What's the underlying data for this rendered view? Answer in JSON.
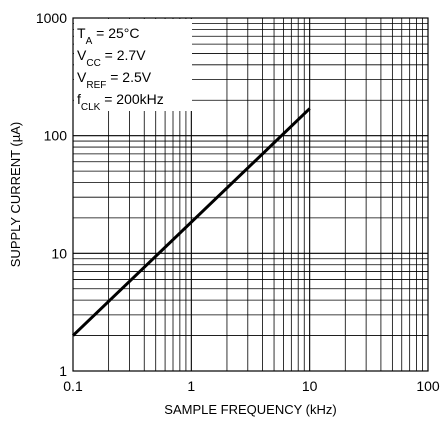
{
  "chart_data": {
    "type": "line",
    "xscale": "log",
    "yscale": "log",
    "xlim": [
      0.1,
      100
    ],
    "ylim": [
      1,
      1000
    ],
    "grid": true,
    "xlabel": "SAMPLE FREQUENCY (kHz)",
    "ylabel": "SUPPLY CURRENT (µA)",
    "x_ticks": [
      "0.1",
      "1",
      "10",
      "100"
    ],
    "y_ticks": [
      "1",
      "10",
      "100",
      "1000"
    ],
    "series": [
      {
        "points": [
          [
            0.1,
            2
          ],
          [
            10,
            170
          ]
        ],
        "color": "#000000"
      }
    ],
    "conditions": [
      {
        "main": "T",
        "sub": "A",
        "rest": " = 25°C"
      },
      {
        "main": "V",
        "sub": "CC",
        "rest": " = 2.7V"
      },
      {
        "main": "V",
        "sub": "REF",
        "rest": " = 2.5V"
      },
      {
        "main": "f",
        "sub": "CLK",
        "rest": " = 200kHz"
      }
    ]
  }
}
